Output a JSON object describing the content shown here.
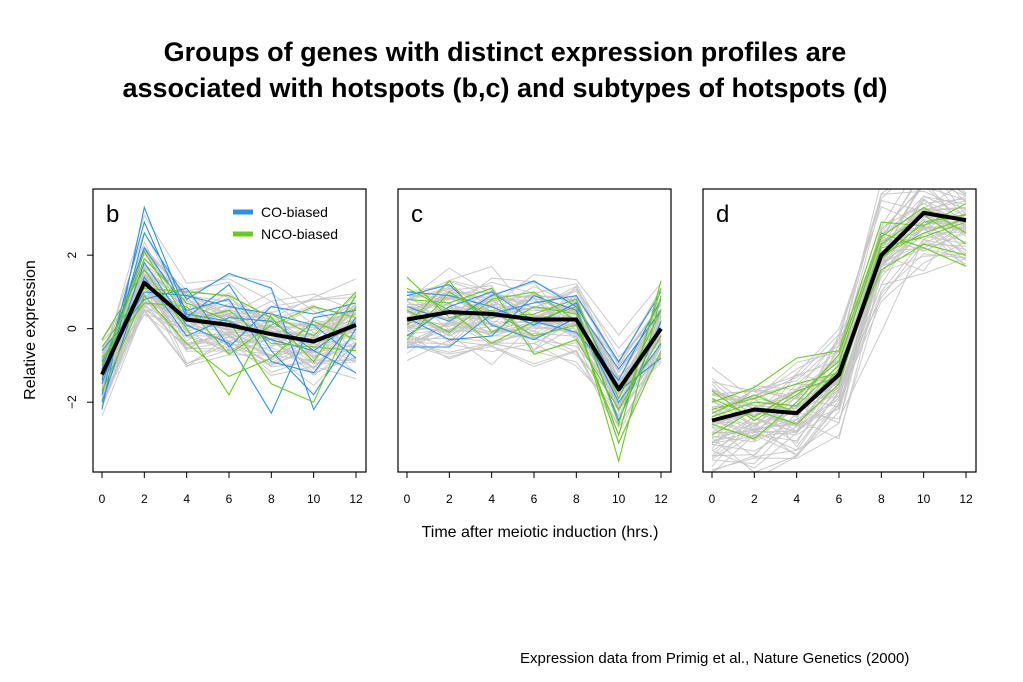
{
  "title": {
    "line1": "Groups of genes with distinct expression profiles are",
    "line2": "associated with hotspots (b,c) and subtypes of hotspots (d)"
  },
  "credit": "Expression data from Primig et al., Nature Genetics (2000)",
  "colors": {
    "background_genes": "#c4c4c4",
    "co_biased": "#2f8fe6",
    "nco_biased": "#6bc823",
    "mean_profile": "#000000"
  },
  "chart_data": {
    "type": "line",
    "xlabel": "Time after meiotic induction (hrs.)",
    "ylabel": "Relative expression",
    "x": [
      0,
      2,
      4,
      6,
      8,
      10,
      12
    ],
    "xlim": [
      0,
      12
    ],
    "ylim": [
      -3.9,
      3.8
    ],
    "yticks": [
      -2,
      0,
      2
    ],
    "ytick_labels": [
      "−2",
      "0",
      "2"
    ],
    "grid": false,
    "legend": {
      "placement": "top-right of panel b",
      "entries": [
        {
          "label": "CO-biased",
          "color": "#2f8fe6"
        },
        {
          "label": "NCO-biased",
          "color": "#6bc823"
        }
      ]
    },
    "panels": [
      {
        "label": "b",
        "mean": [
          -1.25,
          1.25,
          0.25,
          0.1,
          -0.15,
          -0.35,
          0.1
        ],
        "gray_base": [
          -1.3,
          1.3,
          0.25,
          0.1,
          -0.15,
          -0.35,
          0.1
        ],
        "gray_count": 60,
        "gray_spread": 0.7,
        "co_biased": [
          [
            -2.2,
            3.3,
            0.4,
            0.2,
            -0.3,
            -0.6,
            0.2
          ],
          [
            -1.8,
            2.6,
            0.8,
            1.5,
            1.1,
            -2.2,
            -0.4
          ],
          [
            -1.5,
            1.8,
            0.1,
            -0.4,
            -2.3,
            0.3,
            0.5
          ],
          [
            -0.9,
            1.0,
            0.9,
            0.6,
            0.4,
            0.1,
            -0.8
          ],
          [
            -1.1,
            2.2,
            0.5,
            0.8,
            -0.9,
            -1.2,
            0.3
          ],
          [
            -2.0,
            1.4,
            -0.2,
            0.3,
            0.2,
            -0.6,
            -1.2
          ],
          [
            -0.6,
            0.8,
            1.1,
            -0.5,
            0.6,
            0.4,
            0.7
          ],
          [
            -1.4,
            2.9,
            0.3,
            1.2,
            -0.6,
            -1.8,
            0.0
          ]
        ],
        "nco_biased": [
          [
            -0.3,
            1.6,
            0.0,
            -1.8,
            0.4,
            -0.2,
            1.0
          ],
          [
            -1.0,
            1.9,
            0.7,
            0.2,
            -1.5,
            -2.0,
            0.6
          ],
          [
            -1.7,
            0.9,
            -0.4,
            -1.3,
            -0.8,
            0.2,
            -0.3
          ],
          [
            -0.5,
            1.1,
            1.0,
            0.9,
            0.3,
            -0.9,
            0.9
          ],
          [
            -1.3,
            2.1,
            0.2,
            0.5,
            -0.4,
            -0.5,
            -0.6
          ],
          [
            -0.8,
            0.7,
            0.6,
            -0.7,
            0.1,
            0.6,
            0.3
          ]
        ]
      },
      {
        "label": "c",
        "mean": [
          0.25,
          0.45,
          0.4,
          0.25,
          0.25,
          -1.65,
          0.0
        ],
        "gray_base": [
          0.25,
          0.45,
          0.4,
          0.25,
          0.25,
          -1.65,
          0.0
        ],
        "gray_count": 60,
        "gray_spread": 0.65,
        "co_biased": [
          [
            0.6,
            0.2,
            0.9,
            1.3,
            0.6,
            -1.1,
            0.5
          ],
          [
            -0.5,
            -0.5,
            0.4,
            0.7,
            0.9,
            -0.9,
            1.0
          ],
          [
            0.9,
            1.2,
            0.1,
            -0.3,
            0.3,
            -2.0,
            -0.4
          ],
          [
            -0.2,
            0.6,
            1.0,
            0.2,
            -0.1,
            -1.4,
            0.8
          ],
          [
            0.3,
            -0.3,
            -0.2,
            0.9,
            0.5,
            -2.5,
            0.2
          ],
          [
            1.0,
            0.9,
            0.6,
            0.1,
            0.7,
            -1.7,
            -0.8
          ]
        ],
        "nco_biased": [
          [
            1.4,
            0.3,
            0.5,
            -0.2,
            0.1,
            -2.9,
            1.3
          ],
          [
            0.1,
            1.3,
            -0.1,
            0.6,
            0.4,
            -3.6,
            0.9
          ],
          [
            0.8,
            0.7,
            1.1,
            -0.7,
            -0.3,
            -2.2,
            -0.2
          ],
          [
            -0.3,
            1.0,
            0.3,
            0.4,
            0.8,
            -1.9,
            0.5
          ],
          [
            0.5,
            -0.1,
            0.8,
            1.0,
            0.2,
            -3.1,
            -0.6
          ],
          [
            1.1,
            0.5,
            -0.4,
            0.2,
            0.6,
            -2.6,
            1.1
          ]
        ]
      },
      {
        "label": "d",
        "mean": [
          -2.5,
          -2.2,
          -2.3,
          -1.25,
          2.0,
          3.15,
          2.95
        ],
        "gray_base": [
          -2.7,
          -2.5,
          -2.3,
          -1.4,
          2.0,
          3.0,
          2.8
        ],
        "gray_count": 60,
        "gray_spread": 0.8,
        "co_biased": [],
        "nco_biased": [
          [
            -2.0,
            -1.6,
            -0.8,
            -0.6,
            2.9,
            2.8,
            3.4
          ],
          [
            -2.4,
            -2.0,
            -2.1,
            -1.0,
            1.6,
            2.3,
            2.0
          ],
          [
            -1.7,
            -2.5,
            -1.8,
            -0.9,
            2.5,
            3.3,
            2.6
          ],
          [
            -2.9,
            -2.2,
            -2.6,
            -1.5,
            2.2,
            2.5,
            2.9
          ],
          [
            -2.2,
            -1.9,
            -1.5,
            -1.2,
            1.9,
            2.9,
            3.1
          ],
          [
            -2.6,
            -3.0,
            -2.0,
            -0.7,
            2.6,
            2.2,
            1.7
          ],
          [
            -1.9,
            -2.4,
            -1.7,
            -1.3,
            2.3,
            3.1,
            2.3
          ],
          [
            -2.3,
            -1.8,
            -2.3,
            -1.1,
            2.0,
            2.6,
            3.0
          ]
        ]
      }
    ]
  }
}
